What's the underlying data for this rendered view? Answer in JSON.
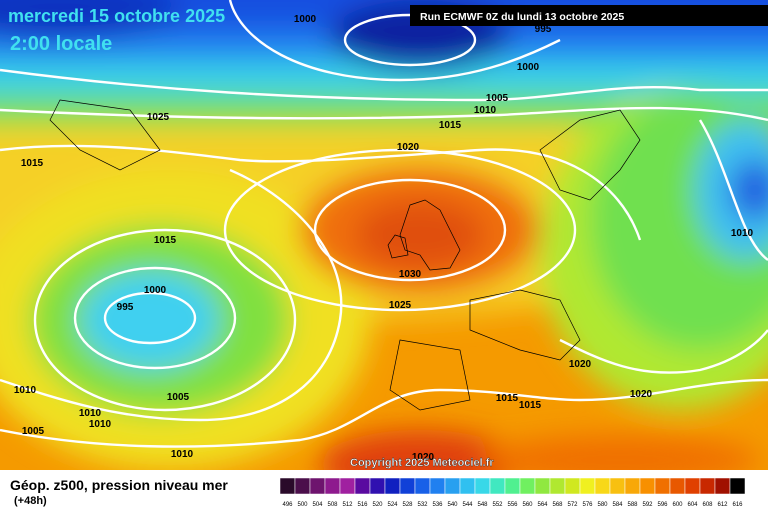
{
  "header": {
    "date": "mercredi 15 octobre 2025",
    "time": "2:00 locale",
    "run": "Run ECMWF 0Z du lundi 13 octobre 2025"
  },
  "isobar_labels": [
    "1000",
    "995",
    "1000",
    "1005",
    "1010",
    "1025",
    "1015",
    "1015",
    "1020",
    "1015",
    "1010",
    "1030",
    "1000",
    "995",
    "1025",
    "1020",
    "1010",
    "1005",
    "1020",
    "1015",
    "1015",
    "1010",
    "1010",
    "1005",
    "1010",
    "1020"
  ],
  "copyright": "Copyright 2025 Meteociel.fr",
  "legend": {
    "title": "Géop. z500, pression niveau mer",
    "subtitle": "(+48h)",
    "ticks": [
      496,
      500,
      504,
      508,
      512,
      516,
      520,
      524,
      528,
      532,
      536,
      540,
      544,
      548,
      552,
      556,
      560,
      564,
      568,
      572,
      576,
      580,
      584,
      588,
      592,
      596,
      600,
      604,
      608,
      612,
      616
    ],
    "colors": [
      "#2a0a2a",
      "#4b0f4b",
      "#6e146e",
      "#8e1a8e",
      "#a020a0",
      "#5a0aa0",
      "#3010b0",
      "#1020c0",
      "#1040d8",
      "#1860e8",
      "#2080f0",
      "#28a0f0",
      "#30c0f0",
      "#38d8e8",
      "#40e8c0",
      "#50f090",
      "#70f060",
      "#90e840",
      "#b0e830",
      "#d0e820",
      "#f0f020",
      "#f8d818",
      "#f8c010",
      "#f8a808",
      "#f89000",
      "#f07000",
      "#e85800",
      "#e04000",
      "#c82800",
      "#a01000",
      "#000000"
    ]
  }
}
